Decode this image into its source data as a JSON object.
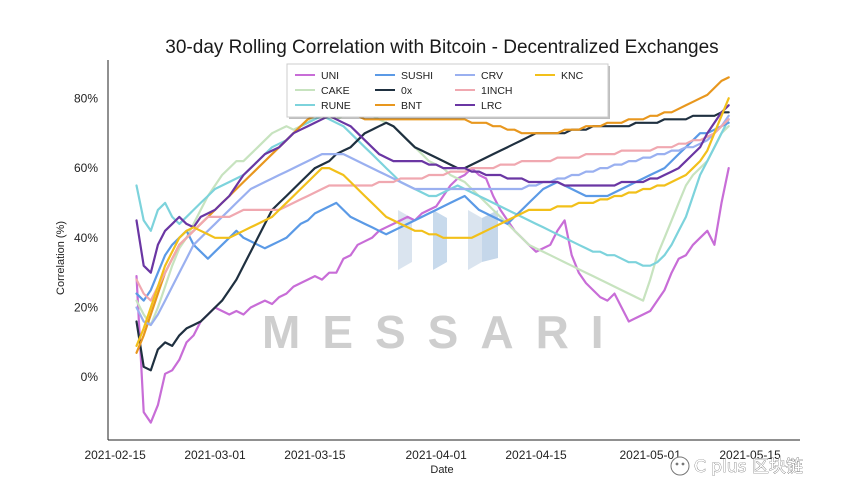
{
  "chart_data": {
    "type": "line",
    "title": "30-day Rolling Correlation with Bitcoin - Decentralized Exchanges",
    "xlabel": "Date",
    "ylabel": "Correlation (%)",
    "ylim": [
      -18,
      91
    ],
    "yticks": [
      0,
      20,
      40,
      60,
      80
    ],
    "ytick_labels": [
      "0%",
      "20%",
      "40%",
      "60%",
      "80%"
    ],
    "xlim": [
      "2021-02-14",
      "2021-05-22"
    ],
    "xticks": [
      "2021-02-15",
      "2021-03-01",
      "2021-03-15",
      "2021-04-01",
      "2021-04-15",
      "2021-05-01",
      "2021-05-15"
    ],
    "grid": false,
    "legend_position": "top-center",
    "watermark": "MESSARI",
    "credit": "C plus 区块链",
    "series": [
      {
        "name": "UNI",
        "color": "#c86dd7",
        "start": "2021-02-18",
        "values": [
          29,
          -10,
          -13,
          -8,
          1,
          2,
          5,
          10,
          12,
          16,
          18,
          20,
          19,
          18,
          19,
          18,
          20,
          21,
          22,
          21,
          23,
          24,
          26,
          27,
          28,
          29,
          28,
          30,
          30,
          34,
          35,
          38,
          39,
          40,
          42,
          43,
          44,
          45,
          46,
          45,
          47,
          48,
          49,
          52,
          55,
          57,
          58,
          60,
          58,
          57,
          52,
          48,
          45,
          42,
          40,
          38,
          36,
          37,
          38,
          42,
          45,
          35,
          30,
          27,
          25,
          23,
          22,
          24,
          20,
          16,
          17,
          18,
          19,
          22,
          25,
          30,
          34,
          35,
          38,
          40,
          42,
          38,
          50,
          60
        ]
      },
      {
        "name": "CAKE",
        "color": "#c7e3bf",
        "start": "2021-02-18",
        "values": [
          22,
          18,
          15,
          20,
          26,
          32,
          37,
          40,
          44,
          48,
          52,
          55,
          58,
          60,
          62,
          62,
          64,
          66,
          68,
          70,
          71,
          72,
          71,
          72,
          73,
          75,
          76,
          75,
          74,
          75,
          76,
          77,
          76,
          75,
          74,
          73,
          72,
          70,
          68,
          66,
          64,
          62,
          61,
          60,
          58,
          57,
          56,
          54,
          52,
          50,
          48,
          46,
          44,
          42,
          40,
          38,
          37,
          36,
          35,
          34,
          33,
          32,
          31,
          30,
          29,
          28,
          27,
          26,
          25,
          24,
          23,
          22,
          28,
          35,
          40,
          45,
          50,
          55,
          58,
          60,
          62,
          66,
          70,
          72
        ]
      },
      {
        "name": "RUNE",
        "color": "#7dd3dc",
        "start": "2021-02-18",
        "values": [
          55,
          45,
          42,
          48,
          50,
          46,
          44,
          46,
          48,
          50,
          52,
          54,
          55,
          56,
          57,
          58,
          60,
          62,
          64,
          66,
          67,
          68,
          70,
          72,
          73,
          74,
          75,
          74,
          73,
          72,
          70,
          68,
          66,
          64,
          62,
          60,
          58,
          56,
          55,
          54,
          53,
          52,
          52,
          53,
          54,
          55,
          54,
          53,
          52,
          51,
          50,
          49,
          48,
          47,
          46,
          45,
          44,
          43,
          42,
          41,
          40,
          39,
          38,
          37,
          36,
          36,
          35,
          35,
          34,
          33,
          33,
          32,
          32,
          33,
          35,
          38,
          42,
          46,
          52,
          58,
          62,
          66,
          70,
          74
        ]
      },
      {
        "name": "SUSHI",
        "color": "#5b9ae6",
        "start": "2021-02-18",
        "values": [
          24,
          22,
          25,
          30,
          35,
          38,
          40,
          42,
          38,
          36,
          34,
          36,
          38,
          40,
          42,
          40,
          39,
          38,
          37,
          38,
          39,
          40,
          42,
          44,
          45,
          47,
          48,
          49,
          50,
          48,
          46,
          45,
          44,
          43,
          42,
          41,
          42,
          43,
          44,
          45,
          46,
          47,
          48,
          49,
          50,
          51,
          52,
          50,
          48,
          47,
          46,
          45,
          44,
          46,
          48,
          50,
          52,
          54,
          55,
          56,
          55,
          54,
          53,
          52,
          52,
          52,
          52,
          53,
          54,
          55,
          56,
          57,
          58,
          59,
          60,
          62,
          64,
          66,
          68,
          70,
          70,
          71,
          72,
          73
        ]
      },
      {
        "name": "0x",
        "color": "#1f3040",
        "start": "2021-02-18",
        "values": [
          16,
          3,
          2,
          8,
          10,
          9,
          12,
          14,
          15,
          16,
          18,
          20,
          22,
          25,
          28,
          32,
          36,
          40,
          44,
          48,
          50,
          52,
          54,
          56,
          58,
          60,
          61,
          62,
          64,
          65,
          66,
          68,
          70,
          71,
          72,
          73,
          72,
          70,
          68,
          66,
          65,
          64,
          63,
          62,
          61,
          60,
          60,
          61,
          62,
          63,
          64,
          65,
          66,
          67,
          68,
          69,
          70,
          70,
          70,
          70,
          70,
          71,
          71,
          71,
          72,
          72,
          72,
          72,
          72,
          72,
          73,
          73,
          73,
          73,
          74,
          74,
          74,
          74,
          75,
          75,
          75,
          75,
          76,
          76
        ]
      },
      {
        "name": "BNT",
        "color": "#e8971e",
        "start": "2021-02-18",
        "values": [
          7,
          12,
          18,
          24,
          30,
          34,
          38,
          40,
          42,
          44,
          46,
          48,
          50,
          52,
          54,
          56,
          58,
          60,
          62,
          64,
          66,
          68,
          70,
          72,
          74,
          75,
          76,
          76,
          76,
          76,
          76,
          75,
          74,
          74,
          74,
          74,
          74,
          74,
          74,
          74,
          74,
          74,
          74,
          74,
          74,
          74,
          74,
          73,
          73,
          73,
          72,
          72,
          71,
          71,
          70,
          70,
          70,
          70,
          70,
          70,
          71,
          71,
          71,
          72,
          72,
          72,
          73,
          73,
          73,
          74,
          74,
          74,
          75,
          75,
          76,
          76,
          77,
          78,
          79,
          80,
          81,
          83,
          85,
          86
        ]
      },
      {
        "name": "CRV",
        "color": "#9ab0f0",
        "start": "2021-02-18",
        "values": [
          20,
          16,
          15,
          18,
          22,
          26,
          30,
          34,
          38,
          40,
          42,
          44,
          46,
          48,
          50,
          52,
          54,
          55,
          56,
          57,
          58,
          59,
          60,
          61,
          62,
          63,
          64,
          64,
          64,
          64,
          63,
          62,
          61,
          60,
          59,
          58,
          57,
          56,
          55,
          54,
          54,
          54,
          54,
          54,
          54,
          54,
          54,
          54,
          54,
          54,
          54,
          54,
          54,
          54,
          54,
          55,
          55,
          56,
          56,
          57,
          57,
          58,
          58,
          59,
          59,
          60,
          60,
          61,
          61,
          62,
          62,
          63,
          63,
          64,
          64,
          65,
          65,
          66,
          66,
          67,
          68,
          70,
          72,
          75
        ]
      },
      {
        "name": "1INCH",
        "color": "#f0a8b0",
        "start": "2021-02-18",
        "values": [
          28,
          24,
          22,
          26,
          30,
          34,
          38,
          40,
          42,
          44,
          46,
          46,
          46,
          46,
          47,
          48,
          48,
          48,
          48,
          48,
          48,
          49,
          50,
          51,
          52,
          53,
          54,
          55,
          55,
          55,
          55,
          55,
          55,
          55,
          56,
          56,
          56,
          57,
          57,
          57,
          57,
          58,
          58,
          58,
          59,
          59,
          59,
          60,
          60,
          60,
          60,
          61,
          61,
          61,
          62,
          62,
          62,
          62,
          62,
          63,
          63,
          63,
          63,
          64,
          64,
          64,
          64,
          64,
          65,
          65,
          65,
          65,
          65,
          66,
          66,
          66,
          67,
          67,
          68,
          68,
          69,
          70,
          72,
          74
        ]
      },
      {
        "name": "LRC",
        "color": "#6a36a3",
        "start": "2021-02-18",
        "values": [
          45,
          32,
          30,
          38,
          42,
          44,
          46,
          44,
          43,
          46,
          47,
          48,
          50,
          52,
          55,
          58,
          60,
          62,
          64,
          65,
          66,
          68,
          70,
          71,
          72,
          73,
          74,
          75,
          74,
          73,
          72,
          70,
          68,
          66,
          64,
          63,
          62,
          62,
          62,
          62,
          62,
          61,
          61,
          60,
          60,
          60,
          60,
          59,
          59,
          58,
          58,
          58,
          57,
          57,
          57,
          56,
          56,
          56,
          56,
          56,
          55,
          55,
          55,
          55,
          55,
          55,
          55,
          55,
          56,
          56,
          56,
          56,
          57,
          57,
          58,
          59,
          60,
          62,
          64,
          66,
          70,
          73,
          76,
          78
        ]
      },
      {
        "name": "KNC",
        "color": "#f2c01a",
        "start": "2021-02-18",
        "values": [
          9,
          14,
          20,
          26,
          32,
          36,
          40,
          42,
          43,
          42,
          41,
          40,
          40,
          40,
          41,
          42,
          43,
          44,
          45,
          46,
          48,
          50,
          52,
          54,
          56,
          58,
          60,
          60,
          59,
          58,
          56,
          54,
          52,
          50,
          48,
          46,
          45,
          44,
          43,
          42,
          42,
          41,
          41,
          40,
          40,
          40,
          40,
          40,
          41,
          42,
          43,
          44,
          45,
          46,
          47,
          48,
          48,
          48,
          48,
          49,
          49,
          49,
          50,
          50,
          50,
          51,
          51,
          52,
          52,
          53,
          53,
          54,
          54,
          55,
          55,
          56,
          57,
          58,
          60,
          62,
          65,
          70,
          75,
          80
        ]
      }
    ]
  }
}
